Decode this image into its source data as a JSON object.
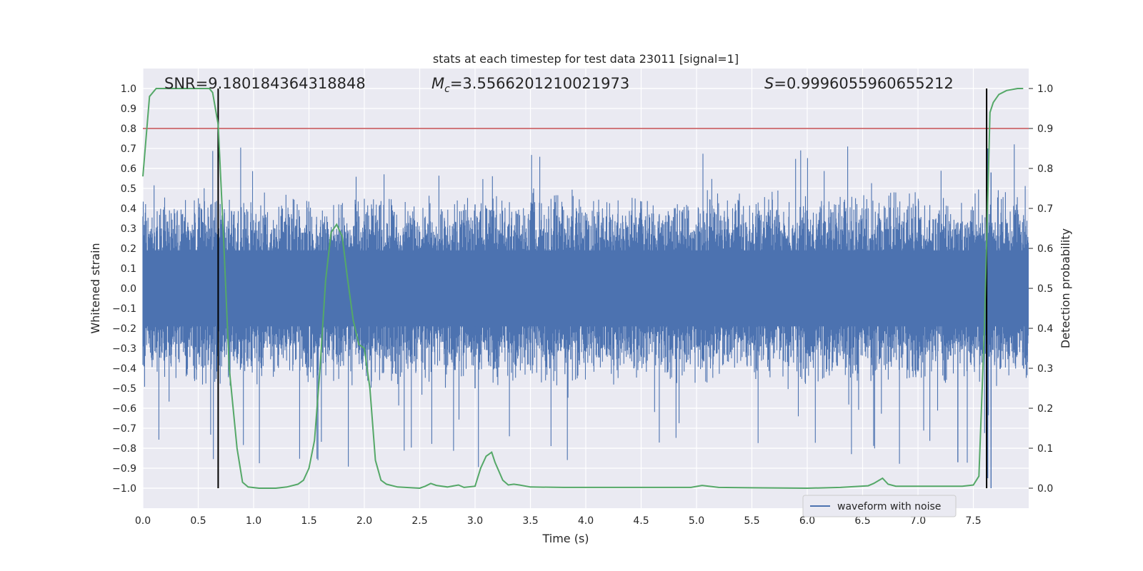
{
  "chart_data": {
    "type": "line",
    "title": "stats at each timestep for test data 23011 [signal=1]",
    "xlabel": "Time (s)",
    "ylabel": "Whitened strain",
    "y2label": "Detection probability",
    "xlim": [
      0,
      8
    ],
    "ylim": [
      -1.1,
      1.1
    ],
    "y2lim": [
      -0.05,
      1.05
    ],
    "x_ticks": [
      0.0,
      0.5,
      1.0,
      1.5,
      2.0,
      2.5,
      3.0,
      3.5,
      4.0,
      4.5,
      5.0,
      5.5,
      6.0,
      6.5,
      7.0,
      7.5
    ],
    "y_ticks": [
      -1.0,
      -0.9,
      -0.8,
      -0.7,
      -0.6,
      -0.5,
      -0.4,
      -0.3,
      -0.2,
      -0.1,
      0.0,
      0.1,
      0.2,
      0.3,
      0.4,
      0.5,
      0.6,
      0.7,
      0.8,
      0.9,
      1.0
    ],
    "y2_ticks": [
      0.0,
      0.1,
      0.2,
      0.3,
      0.4,
      0.5,
      0.6,
      0.7,
      0.8,
      0.9,
      1.0
    ],
    "grid": true,
    "legend": {
      "position": "lower-right",
      "entries": [
        {
          "label": "waveform with noise",
          "color": "#4c72b0"
        }
      ]
    },
    "annotations": {
      "snr": "SNR=9.180184364318848",
      "mc_prefix": "M",
      "mc_sub": "c",
      "mc_value": "=3.5566201210021973",
      "s_prefix": "S",
      "s_value": "=0.9996055960655212"
    },
    "threshold_line": {
      "y2": 0.9,
      "color": "#c44e52"
    },
    "vertical_markers": [
      0.68,
      7.62
    ],
    "waveform": {
      "label": "waveform with noise",
      "color": "#4c72b0",
      "typical_amplitude": 0.2,
      "spike_range": [
        -1.0,
        0.75
      ]
    },
    "detection_probability": {
      "color": "#55a868",
      "x": [
        0.0,
        0.06,
        0.12,
        0.2,
        0.3,
        0.4,
        0.5,
        0.6,
        0.63,
        0.68,
        0.73,
        0.78,
        0.85,
        0.9,
        0.95,
        1.05,
        1.2,
        1.3,
        1.4,
        1.45,
        1.5,
        1.55,
        1.6,
        1.65,
        1.7,
        1.75,
        1.8,
        1.85,
        1.9,
        1.95,
        2.0,
        2.05,
        2.1,
        2.15,
        2.2,
        2.3,
        2.5,
        2.55,
        2.6,
        2.65,
        2.75,
        2.85,
        2.9,
        3.0,
        3.05,
        3.1,
        3.15,
        3.18,
        3.25,
        3.3,
        3.35,
        3.4,
        3.5,
        3.8,
        4.0,
        4.5,
        4.95,
        5.05,
        5.2,
        5.5,
        6.0,
        6.3,
        6.55,
        6.6,
        6.68,
        6.73,
        6.8,
        7.0,
        7.25,
        7.4,
        7.5,
        7.55,
        7.6,
        7.65,
        7.68,
        7.73,
        7.8,
        7.9,
        7.95
      ],
      "y": [
        0.78,
        0.98,
        1.0,
        1.0,
        1.0,
        1.0,
        1.0,
        1.0,
        0.99,
        0.91,
        0.62,
        0.3,
        0.1,
        0.015,
        0.003,
        0.0,
        0.0,
        0.003,
        0.01,
        0.02,
        0.05,
        0.12,
        0.3,
        0.52,
        0.64,
        0.66,
        0.63,
        0.52,
        0.42,
        0.36,
        0.35,
        0.25,
        0.07,
        0.02,
        0.01,
        0.003,
        0.0,
        0.005,
        0.012,
        0.007,
        0.003,
        0.008,
        0.002,
        0.005,
        0.05,
        0.08,
        0.09,
        0.065,
        0.02,
        0.008,
        0.01,
        0.008,
        0.003,
        0.002,
        0.002,
        0.002,
        0.002,
        0.007,
        0.002,
        0.001,
        0.0,
        0.002,
        0.006,
        0.012,
        0.025,
        0.01,
        0.005,
        0.005,
        0.005,
        0.005,
        0.008,
        0.03,
        0.4,
        0.94,
        0.965,
        0.985,
        0.995,
        1.0,
        1.0
      ]
    }
  }
}
